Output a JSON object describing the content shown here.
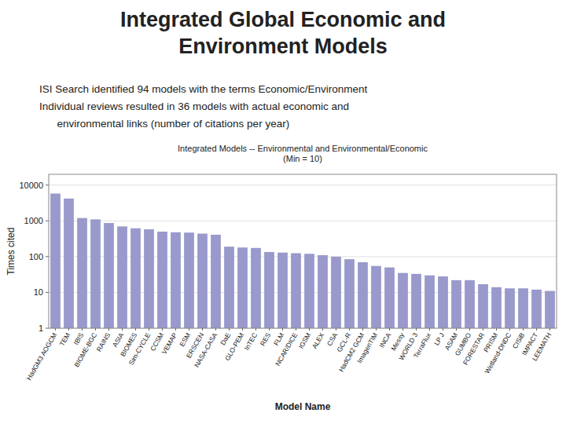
{
  "chart_data": {
    "type": "bar",
    "title": [
      "Integrated Global Economic and",
      "Environment Models"
    ],
    "subtitle": [
      "ISI Search identified 94 models with the terms Economic/Environment",
      "Individual reviews resulted in 36 models with actual economic and",
      "      environmental links (number of citations per year)"
    ],
    "plot_title": [
      "Integrated Models -- Environmental and Environmental/Economic",
      "(Min = 10)"
    ],
    "xlabel": "Model Name",
    "ylabel": "Times cited",
    "categories": [
      "HadGM3 AOGCM",
      "TEM",
      "IBIS",
      "BIOME-BGC",
      "RAINS",
      "ASIA",
      "BIOMES",
      "Sim-CYCLE",
      "CCSM",
      "VEMAP",
      "ESM",
      "ERSCEN",
      "NASA-CASA",
      "DaE",
      "GLO-PEM",
      "InTEC",
      "RES",
      "FLM",
      "NCAR/DICE",
      "IGSM",
      "ALEX",
      "CSA",
      "GCL-R",
      "HadCM2 GCM",
      "ImagenTIM",
      "INCA",
      "Messy",
      "WORLD 3",
      "TerraFlux",
      "LP J",
      "ASAM",
      "GUMBO",
      "FORESTAR",
      "PRISM",
      "Wetland-DNDC",
      "CISiB",
      "IMPACT",
      "LEEMATH"
    ],
    "values": [
      5800,
      4200,
      1200,
      1100,
      870,
      700,
      620,
      580,
      500,
      480,
      470,
      440,
      410,
      190,
      180,
      175,
      135,
      130,
      125,
      120,
      110,
      100,
      85,
      70,
      55,
      50,
      35,
      33,
      30,
      28,
      22,
      22,
      17,
      14,
      13,
      13,
      12,
      11
    ],
    "color": "#9999cc",
    "log": "y",
    "ylim": [
      1,
      20000
    ],
    "yticks": [
      1,
      10,
      100,
      1000,
      10000
    ],
    "grid": true
  }
}
